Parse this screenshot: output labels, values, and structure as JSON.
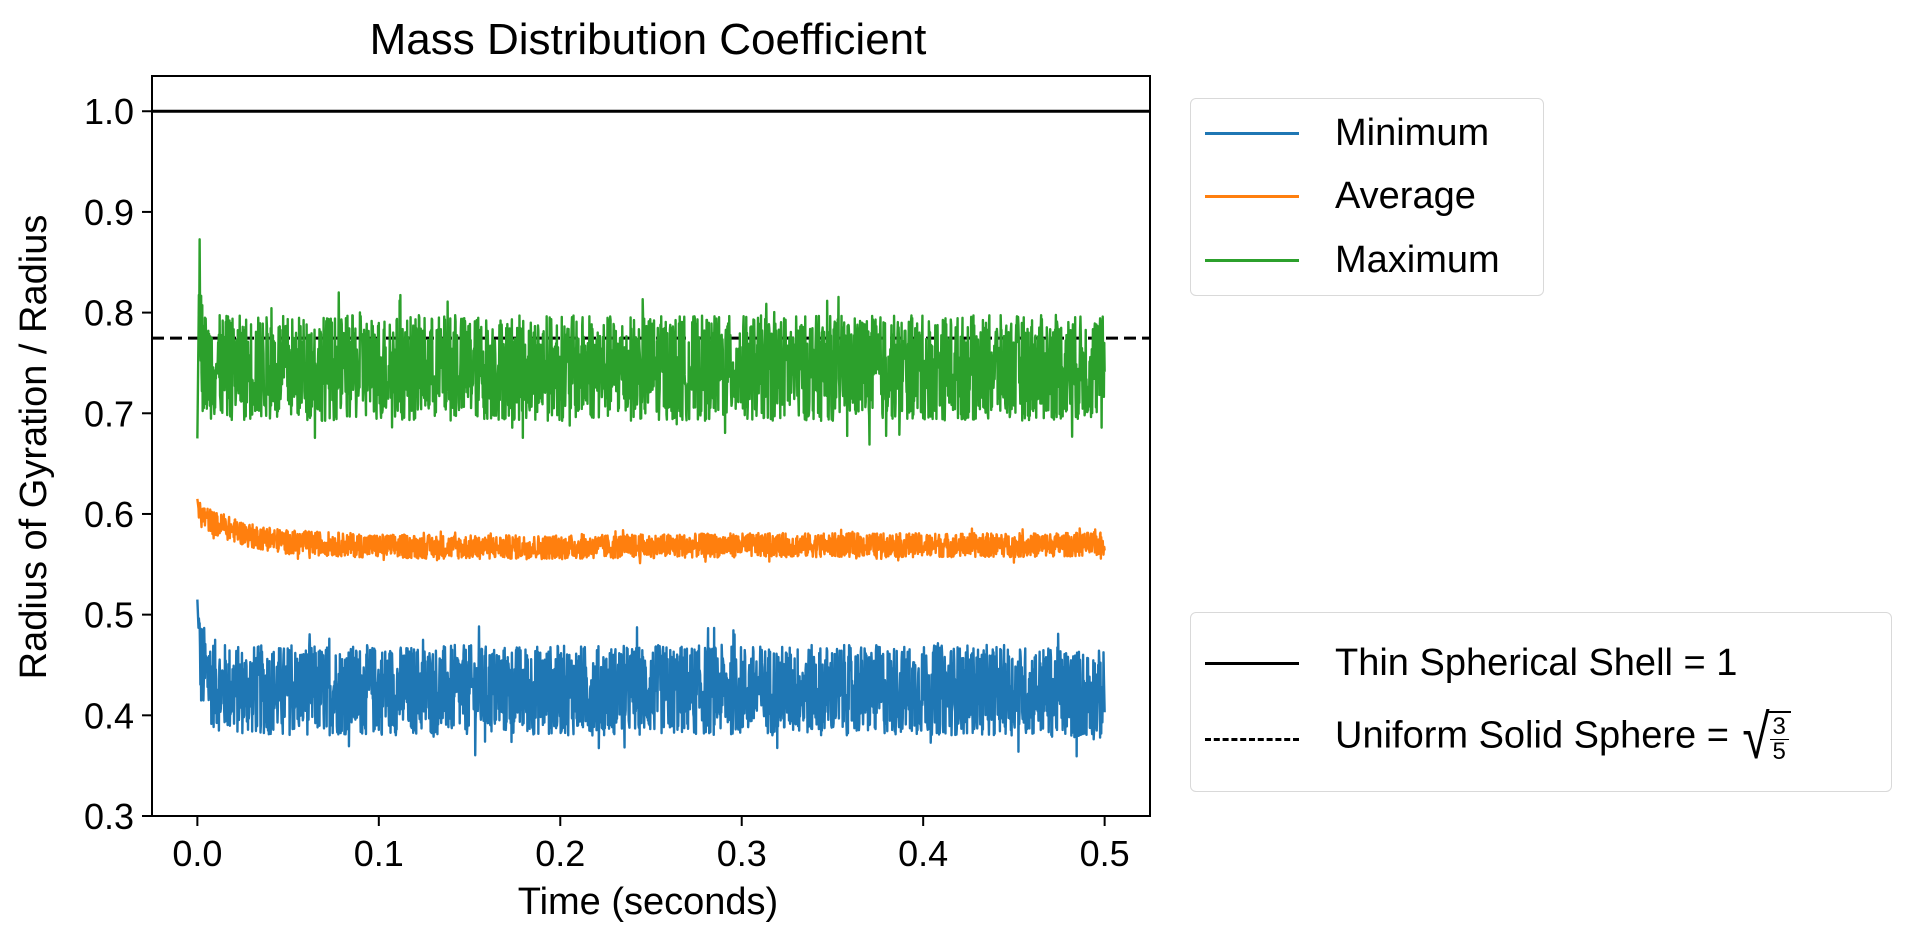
{
  "chart_data": {
    "type": "line",
    "title": "Mass Distribution Coefficient",
    "xlabel": "Time (seconds)",
    "ylabel": "Radius of Gyration / Radius",
    "xlim": [
      -0.025,
      0.525
    ],
    "ylim": [
      0.3,
      1.035
    ],
    "xticks": [
      0.0,
      0.1,
      0.2,
      0.3,
      0.4,
      0.5
    ],
    "xtick_labels": [
      "0.0",
      "0.1",
      "0.2",
      "0.3",
      "0.4",
      "0.5"
    ],
    "yticks": [
      0.3,
      0.4,
      0.5,
      0.6,
      0.7,
      0.8,
      0.9,
      1.0
    ],
    "ytick_labels": [
      "0.3",
      "0.4",
      "0.5",
      "0.6",
      "0.7",
      "0.8",
      "0.9",
      "1.0"
    ],
    "grid": false,
    "series": [
      {
        "name": "Minimum",
        "color": "#1f77b4",
        "x": [
          0.0,
          0.001,
          0.002,
          0.005,
          0.01,
          0.02,
          0.05,
          0.1,
          0.15,
          0.19,
          0.2,
          0.25,
          0.3,
          0.35,
          0.4,
          0.45,
          0.5
        ],
        "y": [
          0.515,
          0.47,
          0.45,
          0.44,
          0.43,
          0.425,
          0.425,
          0.425,
          0.425,
          0.425,
          0.425,
          0.425,
          0.425,
          0.425,
          0.425,
          0.425,
          0.42
        ],
        "noise_range": [
          0.36,
          0.48
        ]
      },
      {
        "name": "Average",
        "color": "#ff7f0e",
        "x": [
          0.0,
          0.001,
          0.01,
          0.03,
          0.05,
          0.1,
          0.15,
          0.2,
          0.25,
          0.3,
          0.35,
          0.4,
          0.45,
          0.5
        ],
        "y": [
          0.615,
          0.6,
          0.59,
          0.578,
          0.572,
          0.568,
          0.567,
          0.567,
          0.568,
          0.569,
          0.569,
          0.569,
          0.569,
          0.57
        ],
        "noise_range": [
          0.553,
          0.585
        ]
      },
      {
        "name": "Maximum",
        "color": "#2ca02c",
        "x": [
          0.0,
          0.001,
          0.003,
          0.01,
          0.05,
          0.1,
          0.15,
          0.2,
          0.25,
          0.3,
          0.35,
          0.4,
          0.45,
          0.5
        ],
        "y": [
          0.675,
          0.84,
          0.75,
          0.745,
          0.745,
          0.745,
          0.745,
          0.745,
          0.745,
          0.745,
          0.745,
          0.745,
          0.745,
          0.745
        ],
        "noise_range": [
          0.68,
          0.82
        ]
      }
    ],
    "reference_lines": [
      {
        "name": "Thin Spherical Shell = 1",
        "y": 1.0,
        "style": "solid",
        "color": "#000000"
      },
      {
        "name_prefix": "Uniform Solid Sphere = ",
        "frac_num": "3",
        "frac_den": "5",
        "y": 0.7746,
        "style": "dashed",
        "color": "#000000"
      }
    ],
    "legends": [
      "upper-right outside",
      "lower-right outside"
    ]
  }
}
